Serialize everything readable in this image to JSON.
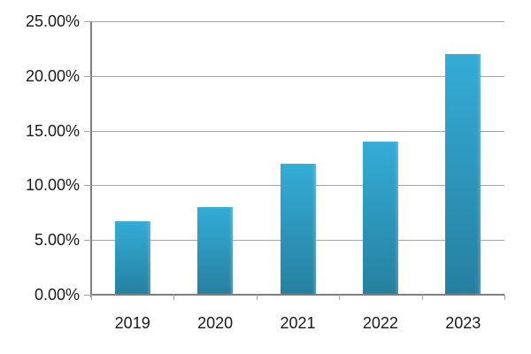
{
  "chart_data": {
    "type": "bar",
    "title": "",
    "xlabel": "",
    "ylabel": "",
    "categories": [
      "2019",
      "2020",
      "2021",
      "2022",
      "2023"
    ],
    "values": [
      6.7,
      8,
      12,
      14,
      22
    ],
    "series": [
      {
        "name": "",
        "values": [
          6.7,
          8,
          12,
          14,
          22
        ]
      }
    ],
    "ylim": [
      0,
      25
    ],
    "ytick_step": 5,
    "ytick_labels": [
      "0.00%",
      "5.00%",
      "10.00%",
      "15.00%",
      "20.00%",
      "25.00%"
    ],
    "grid": true,
    "legend": false,
    "legend_position": "none",
    "style": {
      "background": "#ffffff",
      "bar_gradient_top": "#34acd6",
      "bar_gradient_bottom": "#26809f",
      "gridline_color": "#a6a6a6",
      "axis_color": "#7f7f7f",
      "tick_color": "#a6a6a6",
      "label_color": "#1a1a1a"
    }
  }
}
